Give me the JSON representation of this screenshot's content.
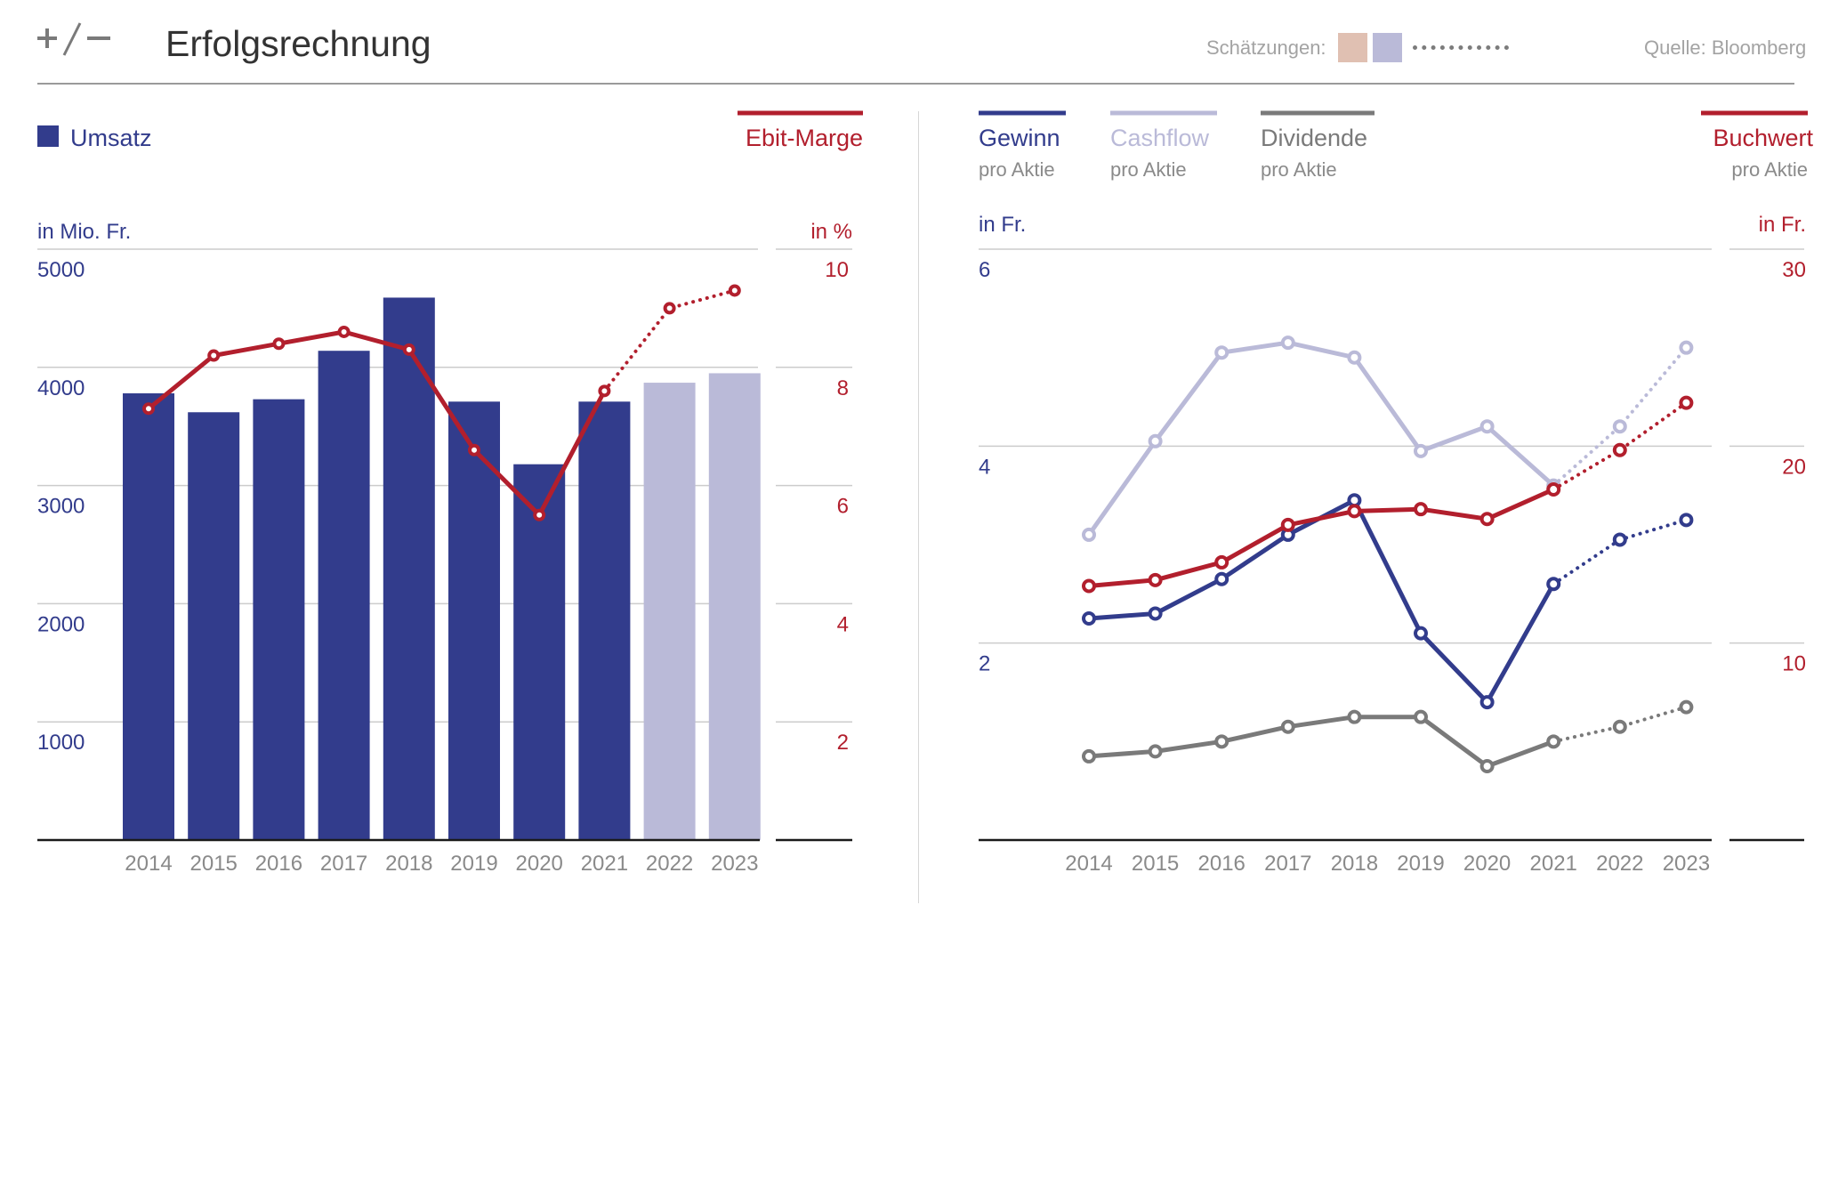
{
  "header": {
    "logo_text": "+/−",
    "title": "Erfolgsrechnung",
    "estimates_label": "Schätzungen:",
    "source": "Quelle: Bloomberg"
  },
  "colors": {
    "navy": "#323c8c",
    "lavender": "#babad8",
    "red": "#b21f2d",
    "gray": "#7a7a7a",
    "light_gray_text": "#a3a3a3",
    "grid": "#cccccc",
    "estimate_box_1": "#e0c0b2",
    "estimate_box_2": "#babad8"
  },
  "chart_data": [
    {
      "type": "bar",
      "title": "Umsatz / Ebit-Marge",
      "categories": [
        "2014",
        "2015",
        "2016",
        "2017",
        "2018",
        "2019",
        "2020",
        "2021",
        "2022",
        "2023"
      ],
      "estimate_from_index": 8,
      "legend": {
        "bars": "Umsatz",
        "line": "Ebit-Marge"
      },
      "series": [
        {
          "name": "Umsatz",
          "axis": "left",
          "unit": "in Mio. Fr.",
          "values": [
            3780,
            3620,
            3730,
            4140,
            4590,
            3710,
            3180,
            3710,
            3870,
            3950
          ]
        },
        {
          "name": "Ebit-Marge",
          "axis": "right",
          "unit": "in %",
          "values": [
            7.3,
            8.2,
            8.4,
            8.6,
            8.3,
            6.6,
            5.5,
            7.6,
            9.0,
            9.3
          ]
        }
      ],
      "left_axis": {
        "label": "in Mio. Fr.",
        "ylim": [
          0,
          5000
        ],
        "ticks": [
          1000,
          2000,
          3000,
          4000,
          5000
        ]
      },
      "right_axis": {
        "label": "in %",
        "ylim": [
          0,
          10
        ],
        "ticks": [
          2,
          4,
          6,
          8,
          10
        ]
      }
    },
    {
      "type": "line",
      "title": "pro Aktie",
      "x": [
        "2014",
        "2015",
        "2016",
        "2017",
        "2018",
        "2019",
        "2020",
        "2021",
        "2022",
        "2023"
      ],
      "estimate_from_index": 8,
      "series": [
        {
          "name": "Cashflow",
          "sub": "pro Aktie",
          "axis": "left",
          "values": [
            3.1,
            4.05,
            4.95,
            5.05,
            4.9,
            3.95,
            4.2,
            3.6,
            4.2,
            5.0
          ]
        },
        {
          "name": "Gewinn",
          "sub": "pro Aktie",
          "axis": "left",
          "values": [
            2.25,
            2.3,
            2.65,
            3.1,
            3.45,
            2.1,
            1.4,
            2.6,
            3.05,
            3.25
          ]
        },
        {
          "name": "Dividende",
          "sub": "pro Aktie",
          "axis": "left",
          "values": [
            0.85,
            0.9,
            1.0,
            1.15,
            1.25,
            1.25,
            0.75,
            1.0,
            1.15,
            1.35
          ]
        },
        {
          "name": "Buchwert",
          "sub": "pro Aktie",
          "axis": "right",
          "values": [
            12.9,
            13.2,
            14.1,
            16.0,
            16.7,
            16.8,
            16.3,
            17.8,
            19.8,
            22.2
          ]
        }
      ],
      "left_axis": {
        "label": "in Fr.",
        "ylim": [
          0,
          6
        ],
        "ticks": [
          2,
          4,
          6
        ]
      },
      "right_axis": {
        "label": "in Fr.",
        "ylim": [
          0,
          30
        ],
        "ticks": [
          10,
          20,
          30
        ]
      }
    }
  ]
}
